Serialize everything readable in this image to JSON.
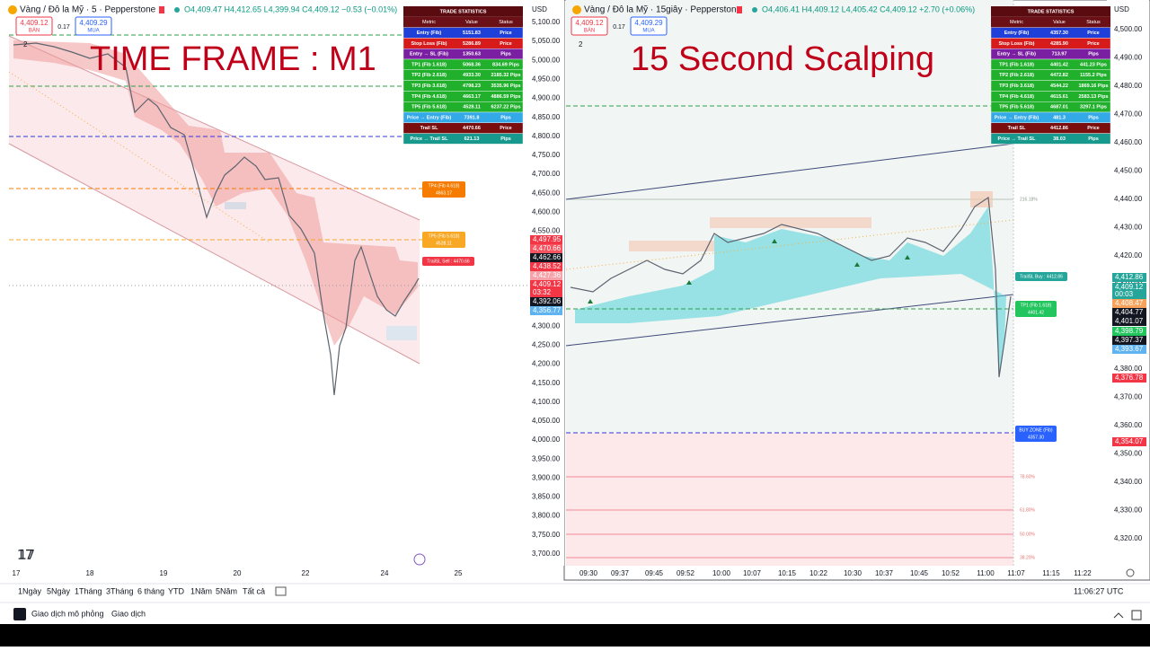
{
  "panels": [
    {
      "symbol": "Vàng / Đô la Mỹ · 5 · Pepperstone",
      "ohlc": "O4,409.47 H4,412.65 L4,399.94 C4,409.12 −0.53 (−0.01%)",
      "sell_price": "4,409.12",
      "sell_label": "BÁN",
      "spread": "0.17",
      "buy_price": "4,409.29",
      "buy_label": "MUA",
      "layers": "2",
      "overlay_title": "TIME FRAME : M1",
      "stats": {
        "title": "TRADE STATISTICS",
        "columns": [
          "Metric",
          "Value",
          "Status"
        ],
        "rows": [
          {
            "cells": [
              "Entry (Fib)",
              "5151.83",
              "Price"
            ],
            "color": "#1e40d8"
          },
          {
            "cells": [
              "Stop Loss (Fib)",
              "5286.89",
              "Price"
            ],
            "color": "#d71a1a"
          },
          {
            "cells": [
              "Entry → SL (Fib)",
              "1350.63",
              "Pips"
            ],
            "color": "#7b1fa2"
          },
          {
            "cells": [
              "TP1 (Fib 1.618)",
              "5068.36",
              "834.69 Pips"
            ],
            "color": "#21b02c"
          },
          {
            "cells": [
              "TP2 (Fib 2.618)",
              "4933.30",
              "2185.32 Pips"
            ],
            "color": "#21b02c"
          },
          {
            "cells": [
              "TP3 (Fib 3.618)",
              "4798.23",
              "3535.96 Pips"
            ],
            "color": "#21b02c"
          },
          {
            "cells": [
              "TP4 (Fib 4.618)",
              "4663.17",
              "4886.59 Pips"
            ],
            "color": "#21b02c"
          },
          {
            "cells": [
              "TP5 (Fib 5.618)",
              "4528.11",
              "6237.22 Pips"
            ],
            "color": "#21b02c"
          },
          {
            "cells": [
              "Price → Entry (Fib)",
              "7391.8",
              "Pips"
            ],
            "color": "#34a9e8"
          },
          {
            "cells": [
              "Trail SL",
              "4470.66",
              "Price"
            ],
            "color": "#7a0d0d"
          },
          {
            "cells": [
              "Price → Trail SL",
              "621.13",
              "Pips"
            ],
            "color": "#17998d"
          }
        ]
      },
      "currency": "USD",
      "price_axis": [
        "5,100.00",
        "5,050.00",
        "5,000.00",
        "4,950.00",
        "4,900.00",
        "4,850.00",
        "4,800.00",
        "4,750.00",
        "4,700.00",
        "4,650.00",
        "4,600.00",
        "4,550.00",
        "4,500.00",
        "4,450.00",
        "4,400.00",
        "4,350.00",
        "4,300.00",
        "4,250.00",
        "4,200.00",
        "4,150.00",
        "4,100.00",
        "4,050.00",
        "4,000.00",
        "3,950.00",
        "3,900.00",
        "3,850.00",
        "3,800.00",
        "3,750.00",
        "3,700.00"
      ],
      "price_tags": [
        {
          "text": "4,497.95",
          "color": "#f23645"
        },
        {
          "text": "4,470.66",
          "color": "#f7525f"
        },
        {
          "text": "4,462.66",
          "color": "#131722"
        },
        {
          "text": "4,438.52",
          "color": "#f23645"
        },
        {
          "text": "4,427.36",
          "color": "#f7a1a8"
        },
        {
          "text": "4,409.12",
          "color": "#f23645"
        },
        {
          "text": "03:32",
          "color": "#f23645"
        },
        {
          "text": "4,392.06",
          "color": "#131722"
        },
        {
          "text": "4,356.77",
          "color": "#5fb3f0"
        }
      ],
      "chart_labels": [
        {
          "lines": [
            "TP4 (Fib 4.618)",
            "4663.17"
          ],
          "color": "#f57c00"
        },
        {
          "lines": [
            "TP5 (Fib 5.618)",
            "4528.11"
          ],
          "color": "#f9a825"
        },
        {
          "lines": [
            "TrailSL Sell : 4470.66"
          ],
          "color": "#f23645"
        }
      ],
      "fib_levels": [],
      "time_axis": [
        "17",
        "18",
        "19",
        "20",
        "22",
        "24",
        "25"
      ]
    },
    {
      "symbol": "Vàng / Đô la Mỹ · 15giây · Pepperstone",
      "ohlc": "O4,406.41 H4,409.12 L4,405.42 C4,409.12 +2.70 (+0.06%)",
      "sell_price": "4,409.12",
      "sell_label": "BÁN",
      "spread": "0.17",
      "buy_price": "4,409.29",
      "buy_label": "MUA",
      "layers": "2",
      "overlay_title": "15 Second Scalping",
      "stats": {
        "title": "TRADE STATISTICS",
        "columns": [
          "Metric",
          "Value",
          "Status"
        ],
        "rows": [
          {
            "cells": [
              "Entry (Fib)",
              "4357.30",
              "Price"
            ],
            "color": "#1e40d8"
          },
          {
            "cells": [
              "Stop Loss (Fib)",
              "4285.90",
              "Price"
            ],
            "color": "#d71a1a"
          },
          {
            "cells": [
              "Entry → SL (Fib)",
              "713.97",
              "Pips"
            ],
            "color": "#7b1fa2"
          },
          {
            "cells": [
              "TP1 (Fib 1.618)",
              "4401.42",
              "441.23 Pips"
            ],
            "color": "#21b02c"
          },
          {
            "cells": [
              "TP2 (Fib 2.618)",
              "4472.82",
              "1155.2 Pips"
            ],
            "color": "#21b02c"
          },
          {
            "cells": [
              "TP3 (Fib 3.618)",
              "4544.22",
              "1869.16 Pips"
            ],
            "color": "#21b02c"
          },
          {
            "cells": [
              "TP4 (Fib 4.618)",
              "4615.61",
              "2583.13 Pips"
            ],
            "color": "#21b02c"
          },
          {
            "cells": [
              "TP5 (Fib 5.618)",
              "4687.01",
              "3297.1 Pips"
            ],
            "color": "#21b02c"
          },
          {
            "cells": [
              "Price → Entry (Fib)",
              "481.3",
              "Pips"
            ],
            "color": "#34a9e8"
          },
          {
            "cells": [
              "Trail SL",
              "4412.86",
              "Price"
            ],
            "color": "#7a0d0d"
          },
          {
            "cells": [
              "Price → Trail SL",
              "38.03",
              "Pips"
            ],
            "color": "#17998d"
          }
        ]
      },
      "currency": "USD",
      "price_axis": [
        "4,500.00",
        "4,490.00",
        "4,480.00",
        "4,470.00",
        "4,460.00",
        "4,450.00",
        "4,440.00",
        "4,430.00",
        "4,420.00",
        "4,410.00",
        "4,400.00",
        "4,390.00",
        "4,380.00",
        "4,370.00",
        "4,360.00",
        "4,350.00",
        "4,340.00",
        "4,330.00",
        "4,320.00"
      ],
      "price_tags": [
        {
          "text": "4,412.86",
          "color": "#26a69a"
        },
        {
          "text": "4,409.12",
          "color": "#26a69a"
        },
        {
          "text": "00:03",
          "color": "#26a69a"
        },
        {
          "text": "4,408.47",
          "color": "#f7a35c"
        },
        {
          "text": "4,404.77",
          "color": "#131722"
        },
        {
          "text": "4,401.07",
          "color": "#131722"
        },
        {
          "text": "4,398.79",
          "color": "#22c55e"
        },
        {
          "text": "4,397.37",
          "color": "#131722"
        },
        {
          "text": "4,393.67",
          "color": "#5fb3f0"
        },
        {
          "text": "4,376.78",
          "color": "#f23645"
        },
        {
          "text": "4,354.07",
          "color": "#f23645"
        }
      ],
      "chart_labels": [
        {
          "lines": [
            "TrailSL Buy : 4412.86"
          ],
          "color": "#26a69a"
        },
        {
          "lines": [
            "TP1 (Fib 1.618)",
            "4401.42"
          ],
          "color": "#22c55e"
        },
        {
          "lines": [
            "BUY ZONE (Fib)",
            "4357.30"
          ],
          "color": "#2962ff"
        }
      ],
      "fib_levels": [
        "216.18%",
        "78.60%",
        "61.80%",
        "50.00%",
        "38.20%"
      ],
      "time_axis": [
        "09:30",
        "09:37",
        "09:45",
        "09:52",
        "10:00",
        "10:07",
        "10:15",
        "10:22",
        "10:30",
        "10:37",
        "10:45",
        "10:52",
        "11:00",
        "11:07",
        "11:15",
        "11:22"
      ]
    }
  ],
  "toolbar": {
    "ranges": [
      "1Ngày",
      "5Ngày",
      "1Tháng",
      "3Tháng",
      "6 tháng",
      "YTD",
      "1Năm",
      "5Năm",
      "Tất cả"
    ],
    "clock": "11:06:27 UTC"
  },
  "footer": {
    "paper_trading": "Giao dịch mô phỏng",
    "trading": "Giao dịch"
  }
}
